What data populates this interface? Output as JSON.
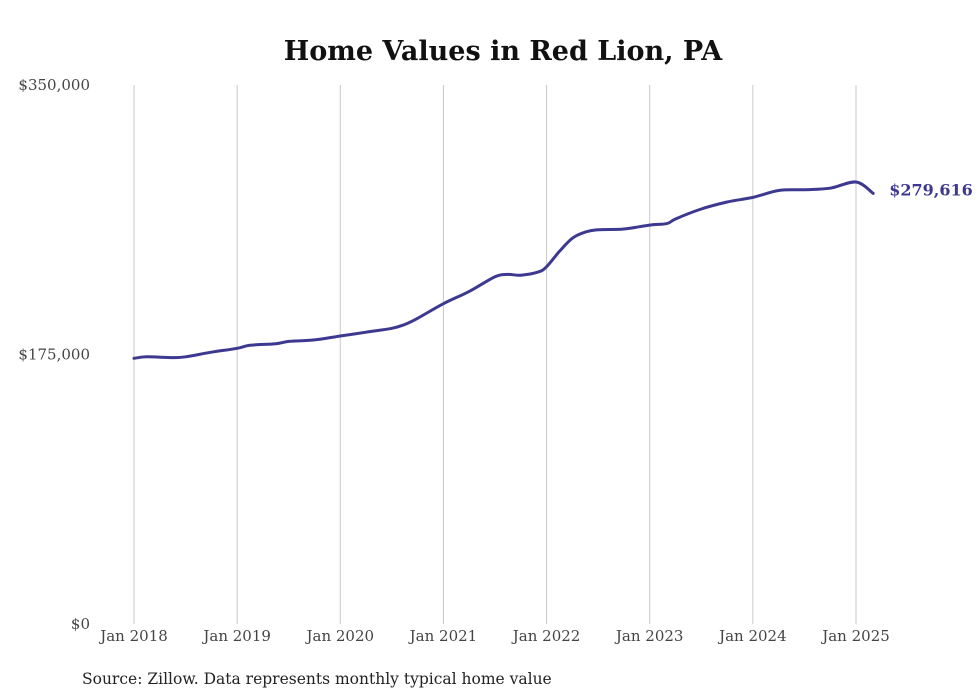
{
  "chart_data": {
    "type": "line",
    "title": "Home Values in Red Lion, PA",
    "xlabel": "",
    "ylabel": "",
    "ylim": [
      0,
      350000
    ],
    "y_ticks": [
      {
        "value": 0,
        "label": "$0"
      },
      {
        "value": 175000,
        "label": "$175,000"
      },
      {
        "value": 350000,
        "label": "$350,000"
      }
    ],
    "x_ticks": [
      {
        "value": 2018,
        "label": "Jan 2018"
      },
      {
        "value": 2019,
        "label": "Jan 2019"
      },
      {
        "value": 2020,
        "label": "Jan 2020"
      },
      {
        "value": 2021,
        "label": "Jan 2021"
      },
      {
        "value": 2022,
        "label": "Jan 2022"
      },
      {
        "value": 2023,
        "label": "Jan 2023"
      },
      {
        "value": 2024,
        "label": "Jan 2024"
      },
      {
        "value": 2025,
        "label": "Jan 2025"
      }
    ],
    "grid": "vertical",
    "color": "#3d3890",
    "end_label": "$279,616",
    "source": "Source: Zillow. Data represents monthly typical home value",
    "series": [
      {
        "points": [
          [
            2018.0,
            172500
          ],
          [
            2018.125,
            173500
          ],
          [
            2018.375,
            173000
          ],
          [
            2018.5,
            173500
          ],
          [
            2018.75,
            176500
          ],
          [
            2019.0,
            179000
          ],
          [
            2019.125,
            181000
          ],
          [
            2019.375,
            182000
          ],
          [
            2019.5,
            183500
          ],
          [
            2019.75,
            184500
          ],
          [
            2020.0,
            187000
          ],
          [
            2020.25,
            189500
          ],
          [
            2020.5,
            192000
          ],
          [
            2020.625,
            194500
          ],
          [
            2020.75,
            198500
          ],
          [
            2021.0,
            208000
          ],
          [
            2021.25,
            216000
          ],
          [
            2021.5,
            225500
          ],
          [
            2021.625,
            227000
          ],
          [
            2021.75,
            226500
          ],
          [
            2021.917,
            228500
          ],
          [
            2022.0,
            232000
          ],
          [
            2022.125,
            242000
          ],
          [
            2022.25,
            250500
          ],
          [
            2022.375,
            254500
          ],
          [
            2022.5,
            256000
          ],
          [
            2022.75,
            256500
          ],
          [
            2023.0,
            259000
          ],
          [
            2023.167,
            260000
          ],
          [
            2023.25,
            263000
          ],
          [
            2023.5,
            269500
          ],
          [
            2023.75,
            274000
          ],
          [
            2024.0,
            277000
          ],
          [
            2024.25,
            281500
          ],
          [
            2024.5,
            282000
          ],
          [
            2024.75,
            283000
          ],
          [
            2025.0,
            287000
          ],
          [
            2025.167,
            279616
          ]
        ]
      }
    ]
  }
}
